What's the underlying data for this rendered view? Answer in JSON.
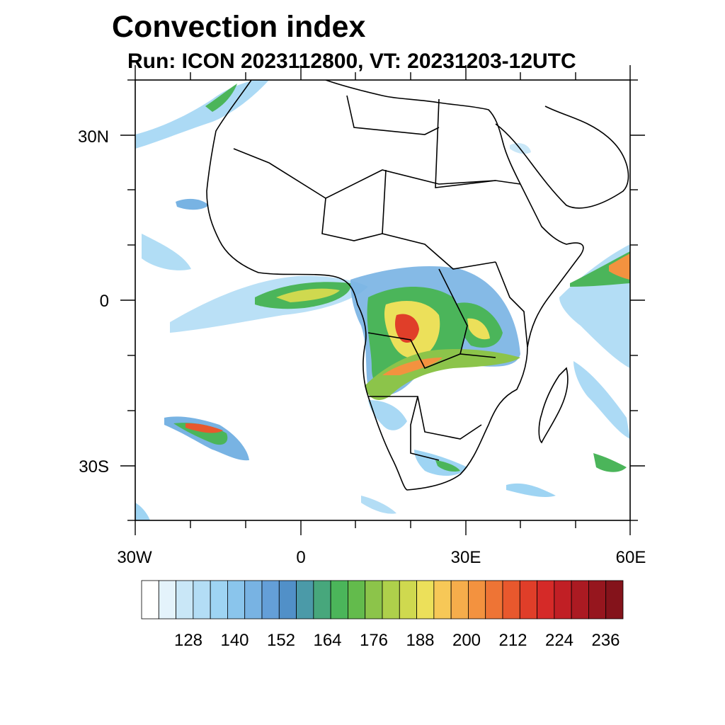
{
  "title": "Convection index",
  "subtitle": "Run: ICON 2023112800,  VT: 20231203-12UTC",
  "lat_labels": [
    "30N",
    "0",
    "30S"
  ],
  "lon_labels": [
    "30W",
    "0",
    "30E",
    "60E"
  ],
  "colorbar": {
    "labels": [
      "128",
      "140",
      "152",
      "164",
      "176",
      "188",
      "200",
      "212",
      "224",
      "236"
    ],
    "colors": [
      "#ffffff",
      "#e4f3fb",
      "#c9e7f7",
      "#b3ddf5",
      "#9ed4f3",
      "#8ac5ec",
      "#78b3e3",
      "#649fd8",
      "#5190c8",
      "#4b9aa8",
      "#47a77c",
      "#4bb55a",
      "#63bb4c",
      "#8cc44a",
      "#aed04b",
      "#cfd94f",
      "#ece05a",
      "#f7c857",
      "#f6ad4b",
      "#f3923f",
      "#ee7435",
      "#e8582d",
      "#e03e29",
      "#d52a28",
      "#c11f25",
      "#ab1a22",
      "#96161e",
      "#84131b"
    ]
  }
}
